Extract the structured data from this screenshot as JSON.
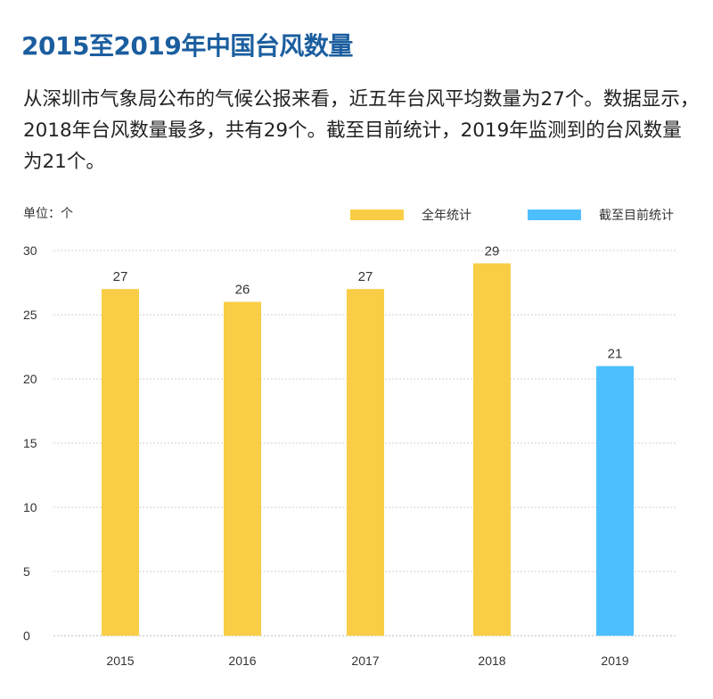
{
  "title": "2015至2019年中国台风数量",
  "paragraph": "从深圳市气象局公布的气候公报来看，近五年台风平均数量为27个。数据显示，2018年台风数量最多，共有29个。截至目前统计，2019年监测到的台风数量为21个。",
  "chart_data": {
    "type": "bar",
    "unit_label": "单位：个",
    "categories": [
      "2015",
      "2016",
      "2017",
      "2018",
      "2019"
    ],
    "series": [
      {
        "name": "全年统计",
        "color": "#F9CD45",
        "values": [
          27,
          26,
          27,
          29,
          null
        ]
      },
      {
        "name": "截至目前统计",
        "color": "#4DBFFF",
        "values": [
          null,
          null,
          null,
          null,
          21
        ]
      }
    ],
    "yticks": [
      0,
      5,
      10,
      15,
      20,
      25,
      30
    ],
    "ylim": [
      0,
      30
    ],
    "grid": true,
    "legend": "top-right"
  }
}
